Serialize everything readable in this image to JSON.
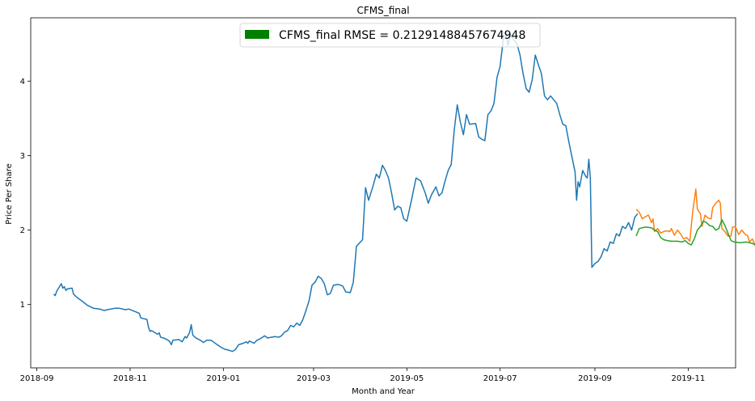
{
  "chart_data": {
    "type": "line",
    "title": "CFMS_final",
    "xlabel": "Month and Year",
    "ylabel": "Price Per Share",
    "x_ticks": [
      "2018-09",
      "2018-11",
      "2019-01",
      "2019-03",
      "2019-05",
      "2019-07",
      "2019-09",
      "2019-11"
    ],
    "y_ticks": [
      1,
      2,
      3,
      4
    ],
    "xlim": [
      "2018-08-28",
      "2019-12-02"
    ],
    "ylim": [
      0.15,
      4.85
    ],
    "grid": false,
    "legend": {
      "placement": "top-center",
      "label": "CFMS_final RMSE = 0.21291488457674948",
      "color": "#008000"
    },
    "series": [
      {
        "color": "#1f77b4",
        "points": [
          [
            "2018-09-12",
            1.14
          ],
          [
            "2018-09-13",
            1.12
          ],
          [
            "2018-09-14",
            1.18
          ],
          [
            "2018-09-17",
            1.28
          ],
          [
            "2018-09-18",
            1.22
          ],
          [
            "2018-09-19",
            1.24
          ],
          [
            "2018-09-20",
            1.19
          ],
          [
            "2018-09-21",
            1.21
          ],
          [
            "2018-09-24",
            1.22
          ],
          [
            "2018-09-25",
            1.14
          ],
          [
            "2018-09-27",
            1.1
          ],
          [
            "2018-10-01",
            1.04
          ],
          [
            "2018-10-04",
            0.99
          ],
          [
            "2018-10-08",
            0.95
          ],
          [
            "2018-10-12",
            0.94
          ],
          [
            "2018-10-15",
            0.92
          ],
          [
            "2018-10-17",
            0.93
          ],
          [
            "2018-10-22",
            0.95
          ],
          [
            "2018-10-25",
            0.95
          ],
          [
            "2018-10-29",
            0.93
          ],
          [
            "2018-10-31",
            0.94
          ],
          [
            "2018-11-05",
            0.9
          ],
          [
            "2018-11-07",
            0.88
          ],
          [
            "2018-11-08",
            0.82
          ],
          [
            "2018-11-12",
            0.8
          ],
          [
            "2018-11-13",
            0.7
          ],
          [
            "2018-11-14",
            0.64
          ],
          [
            "2018-11-15",
            0.65
          ],
          [
            "2018-11-19",
            0.6
          ],
          [
            "2018-11-20",
            0.62
          ],
          [
            "2018-11-21",
            0.56
          ],
          [
            "2018-11-23",
            0.55
          ],
          [
            "2018-11-26",
            0.52
          ],
          [
            "2018-11-27",
            0.5
          ],
          [
            "2018-11-28",
            0.46
          ],
          [
            "2018-11-29",
            0.52
          ],
          [
            "2018-12-03",
            0.53
          ],
          [
            "2018-12-05",
            0.5
          ],
          [
            "2018-12-07",
            0.57
          ],
          [
            "2018-12-08",
            0.55
          ],
          [
            "2018-12-10",
            0.63
          ],
          [
            "2018-12-11",
            0.73
          ],
          [
            "2018-12-12",
            0.59
          ],
          [
            "2018-12-14",
            0.55
          ],
          [
            "2018-12-17",
            0.52
          ],
          [
            "2018-12-19",
            0.49
          ],
          [
            "2018-12-21",
            0.52
          ],
          [
            "2018-12-24",
            0.52
          ],
          [
            "2018-12-26",
            0.49
          ],
          [
            "2018-12-28",
            0.46
          ],
          [
            "2018-12-31",
            0.42
          ],
          [
            "2019-01-02",
            0.4
          ],
          [
            "2019-01-04",
            0.39
          ],
          [
            "2019-01-07",
            0.37
          ],
          [
            "2019-01-09",
            0.4
          ],
          [
            "2019-01-11",
            0.46
          ],
          [
            "2019-01-14",
            0.48
          ],
          [
            "2019-01-16",
            0.5
          ],
          [
            "2019-01-17",
            0.48
          ],
          [
            "2019-01-18",
            0.51
          ],
          [
            "2019-01-21",
            0.48
          ],
          [
            "2019-01-23",
            0.52
          ],
          [
            "2019-01-25",
            0.54
          ],
          [
            "2019-01-28",
            0.58
          ],
          [
            "2019-01-30",
            0.55
          ],
          [
            "2019-02-01",
            0.56
          ],
          [
            "2019-02-04",
            0.57
          ],
          [
            "2019-02-06",
            0.56
          ],
          [
            "2019-02-08",
            0.58
          ],
          [
            "2019-02-10",
            0.63
          ],
          [
            "2019-02-12",
            0.65
          ],
          [
            "2019-02-14",
            0.72
          ],
          [
            "2019-02-16",
            0.7
          ],
          [
            "2019-02-18",
            0.75
          ],
          [
            "2019-02-20",
            0.72
          ],
          [
            "2019-02-22",
            0.8
          ],
          [
            "2019-02-24",
            0.92
          ],
          [
            "2019-02-26",
            1.05
          ],
          [
            "2019-02-28",
            1.26
          ],
          [
            "2019-03-02",
            1.3
          ],
          [
            "2019-03-04",
            1.38
          ],
          [
            "2019-03-06",
            1.35
          ],
          [
            "2019-03-08",
            1.28
          ],
          [
            "2019-03-10",
            1.13
          ],
          [
            "2019-03-12",
            1.15
          ],
          [
            "2019-03-14",
            1.26
          ],
          [
            "2019-03-17",
            1.27
          ],
          [
            "2019-03-20",
            1.25
          ],
          [
            "2019-03-22",
            1.17
          ],
          [
            "2019-03-25",
            1.16
          ],
          [
            "2019-03-27",
            1.3
          ],
          [
            "2019-03-29",
            1.78
          ],
          [
            "2019-04-02",
            1.87
          ],
          [
            "2019-04-04",
            2.57
          ],
          [
            "2019-04-06",
            2.4
          ],
          [
            "2019-04-09",
            2.6
          ],
          [
            "2019-04-11",
            2.75
          ],
          [
            "2019-04-13",
            2.7
          ],
          [
            "2019-04-15",
            2.87
          ],
          [
            "2019-04-17",
            2.8
          ],
          [
            "2019-04-19",
            2.7
          ],
          [
            "2019-04-21",
            2.5
          ],
          [
            "2019-04-23",
            2.27
          ],
          [
            "2019-04-25",
            2.32
          ],
          [
            "2019-04-27",
            2.3
          ],
          [
            "2019-04-29",
            2.15
          ],
          [
            "2019-05-01",
            2.12
          ],
          [
            "2019-05-04",
            2.4
          ],
          [
            "2019-05-07",
            2.7
          ],
          [
            "2019-05-10",
            2.66
          ],
          [
            "2019-05-13",
            2.5
          ],
          [
            "2019-05-15",
            2.36
          ],
          [
            "2019-05-17",
            2.47
          ],
          [
            "2019-05-20",
            2.58
          ],
          [
            "2019-05-22",
            2.46
          ],
          [
            "2019-05-24",
            2.5
          ],
          [
            "2019-05-26",
            2.66
          ],
          [
            "2019-05-28",
            2.8
          ],
          [
            "2019-05-30",
            2.88
          ],
          [
            "2019-06-01",
            3.35
          ],
          [
            "2019-06-03",
            3.68
          ],
          [
            "2019-06-05",
            3.45
          ],
          [
            "2019-06-07",
            3.28
          ],
          [
            "2019-06-09",
            3.55
          ],
          [
            "2019-06-11",
            3.42
          ],
          [
            "2019-06-15",
            3.43
          ],
          [
            "2019-06-17",
            3.25
          ],
          [
            "2019-06-19",
            3.22
          ],
          [
            "2019-06-21",
            3.2
          ],
          [
            "2019-06-23",
            3.55
          ],
          [
            "2019-06-25",
            3.6
          ],
          [
            "2019-06-27",
            3.7
          ],
          [
            "2019-06-29",
            4.05
          ],
          [
            "2019-07-01",
            4.2
          ],
          [
            "2019-07-03",
            4.55
          ],
          [
            "2019-07-05",
            4.65
          ],
          [
            "2019-07-06",
            4.48
          ],
          [
            "2019-07-08",
            4.62
          ],
          [
            "2019-07-10",
            4.55
          ],
          [
            "2019-07-12",
            4.5
          ],
          [
            "2019-07-14",
            4.35
          ],
          [
            "2019-07-16",
            4.1
          ],
          [
            "2019-07-18",
            3.9
          ],
          [
            "2019-07-20",
            3.85
          ],
          [
            "2019-07-22",
            4.02
          ],
          [
            "2019-07-24",
            4.35
          ],
          [
            "2019-07-26",
            4.22
          ],
          [
            "2019-07-28",
            4.1
          ],
          [
            "2019-07-30",
            3.8
          ],
          [
            "2019-08-01",
            3.75
          ],
          [
            "2019-08-03",
            3.8
          ],
          [
            "2019-08-05",
            3.75
          ],
          [
            "2019-08-07",
            3.7
          ],
          [
            "2019-08-09",
            3.55
          ],
          [
            "2019-08-11",
            3.42
          ],
          [
            "2019-08-13",
            3.4
          ],
          [
            "2019-08-15",
            3.18
          ],
          [
            "2019-08-17",
            2.98
          ],
          [
            "2019-08-19",
            2.78
          ],
          [
            "2019-08-20",
            2.4
          ],
          [
            "2019-08-21",
            2.65
          ],
          [
            "2019-08-22",
            2.58
          ],
          [
            "2019-08-24",
            2.8
          ],
          [
            "2019-08-26",
            2.72
          ],
          [
            "2019-08-27",
            2.7
          ],
          [
            "2019-08-28",
            2.95
          ],
          [
            "2019-08-29",
            2.7
          ],
          [
            "2019-08-30",
            1.5
          ],
          [
            "2019-09-01",
            1.55
          ],
          [
            "2019-09-03",
            1.58
          ],
          [
            "2019-09-05",
            1.64
          ],
          [
            "2019-09-07",
            1.75
          ],
          [
            "2019-09-09",
            1.72
          ],
          [
            "2019-09-11",
            1.84
          ],
          [
            "2019-09-13",
            1.82
          ],
          [
            "2019-09-15",
            1.95
          ],
          [
            "2019-09-17",
            1.92
          ],
          [
            "2019-09-19",
            2.05
          ],
          [
            "2019-09-21",
            2.02
          ],
          [
            "2019-09-23",
            2.1
          ],
          [
            "2019-09-25",
            2.0
          ],
          [
            "2019-09-27",
            2.17
          ],
          [
            "2019-09-29",
            2.22
          ]
        ]
      },
      {
        "color": "#ff7f0e",
        "points": [
          [
            "2019-09-28",
            2.28
          ],
          [
            "2019-09-30",
            2.24
          ],
          [
            "2019-10-02",
            2.15
          ],
          [
            "2019-10-04",
            2.18
          ],
          [
            "2019-10-06",
            2.2
          ],
          [
            "2019-10-08",
            2.1
          ],
          [
            "2019-10-09",
            2.15
          ],
          [
            "2019-10-10",
            1.98
          ],
          [
            "2019-10-12",
            2.02
          ],
          [
            "2019-10-14",
            1.96
          ],
          [
            "2019-10-16",
            1.98
          ],
          [
            "2019-10-18",
            1.99
          ],
          [
            "2019-10-20",
            1.98
          ],
          [
            "2019-10-21",
            2.02
          ],
          [
            "2019-10-23",
            1.93
          ],
          [
            "2019-10-25",
            2.0
          ],
          [
            "2019-10-27",
            1.95
          ],
          [
            "2019-10-29",
            1.88
          ],
          [
            "2019-10-31",
            1.9
          ],
          [
            "2019-11-02",
            1.85
          ],
          [
            "2019-11-04",
            2.25
          ],
          [
            "2019-11-06",
            2.55
          ],
          [
            "2019-11-07",
            2.28
          ],
          [
            "2019-11-09",
            2.22
          ],
          [
            "2019-11-10",
            2.05
          ],
          [
            "2019-11-12",
            2.2
          ],
          [
            "2019-11-14",
            2.16
          ],
          [
            "2019-11-16",
            2.15
          ],
          [
            "2019-11-17",
            2.3
          ],
          [
            "2019-11-19",
            2.36
          ],
          [
            "2019-11-21",
            2.4
          ],
          [
            "2019-11-22",
            2.36
          ],
          [
            "2019-11-23",
            2.02
          ],
          [
            "2019-11-25",
            1.98
          ],
          [
            "2019-11-27",
            1.92
          ],
          [
            "2019-11-29",
            1.92
          ],
          [
            "2019-11-30",
            2.04
          ],
          [
            "2019-12-02",
            2.04
          ],
          [
            "2019-12-04",
            1.94
          ],
          [
            "2019-12-06",
            2.0
          ],
          [
            "2019-12-08",
            1.95
          ],
          [
            "2019-12-10",
            1.92
          ],
          [
            "2019-12-11",
            1.84
          ],
          [
            "2019-12-13",
            1.88
          ],
          [
            "2019-12-15",
            1.78
          ],
          [
            "2019-12-17",
            1.76
          ],
          [
            "2019-12-19",
            1.78
          ]
        ]
      },
      {
        "color": "#2ca02c",
        "points": [
          [
            "2019-09-28",
            1.92
          ],
          [
            "2019-09-30",
            2.02
          ],
          [
            "2019-10-04",
            2.04
          ],
          [
            "2019-10-08",
            2.03
          ],
          [
            "2019-10-10",
            2.0
          ],
          [
            "2019-10-12",
            1.98
          ],
          [
            "2019-10-14",
            1.9
          ],
          [
            "2019-10-16",
            1.87
          ],
          [
            "2019-10-18",
            1.86
          ],
          [
            "2019-10-21",
            1.85
          ],
          [
            "2019-10-25",
            1.85
          ],
          [
            "2019-10-28",
            1.84
          ],
          [
            "2019-10-30",
            1.86
          ],
          [
            "2019-11-01",
            1.82
          ],
          [
            "2019-11-03",
            1.8
          ],
          [
            "2019-11-05",
            1.88
          ],
          [
            "2019-11-07",
            2.0
          ],
          [
            "2019-11-09",
            2.05
          ],
          [
            "2019-11-11",
            2.12
          ],
          [
            "2019-11-13",
            2.1
          ],
          [
            "2019-11-15",
            2.06
          ],
          [
            "2019-11-17",
            2.05
          ],
          [
            "2019-11-19",
            2.0
          ],
          [
            "2019-11-21",
            2.02
          ],
          [
            "2019-11-23",
            2.14
          ],
          [
            "2019-11-25",
            2.06
          ],
          [
            "2019-11-27",
            1.96
          ],
          [
            "2019-11-29",
            1.86
          ],
          [
            "2019-12-01",
            1.84
          ],
          [
            "2019-12-05",
            1.83
          ],
          [
            "2019-12-09",
            1.84
          ],
          [
            "2019-12-11",
            1.83
          ],
          [
            "2019-12-13",
            1.82
          ],
          [
            "2019-12-15",
            1.8
          ],
          [
            "2019-12-17",
            1.76
          ],
          [
            "2019-12-19",
            1.72
          ]
        ]
      }
    ]
  }
}
